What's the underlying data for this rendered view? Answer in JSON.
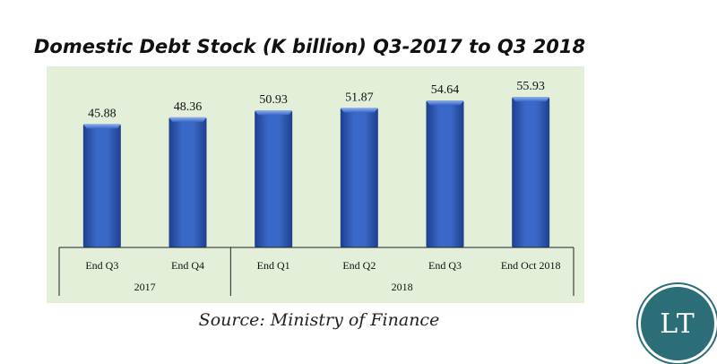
{
  "page": {
    "source": "Source: Ministry of Finance",
    "logo_text": "LT"
  },
  "chart_data": {
    "type": "bar",
    "title": "Domestic Debt Stock (K billion) Q3-2017 to Q3 2018",
    "categories": [
      "End Q3",
      "End Q4",
      "End Q1",
      "End Q2",
      "End Q3",
      "End Oct 2018"
    ],
    "groups": [
      {
        "label": "2017",
        "categories": [
          "End Q3",
          "End Q4"
        ]
      },
      {
        "label": "2018",
        "categories": [
          "End Q1",
          "End Q2",
          "End Q3",
          "End Oct 2018"
        ]
      }
    ],
    "values": [
      45.88,
      48.36,
      50.93,
      51.87,
      54.64,
      55.93
    ],
    "xlabel": "",
    "ylabel": "",
    "ylim": [
      0,
      58
    ],
    "grid": false,
    "legend": "none",
    "colors": {
      "bar": "#3a68c8",
      "bar_dark": "#1f3f8c",
      "bar_light": "#8fb0ea",
      "plot_bg": "#e3efd9"
    }
  }
}
